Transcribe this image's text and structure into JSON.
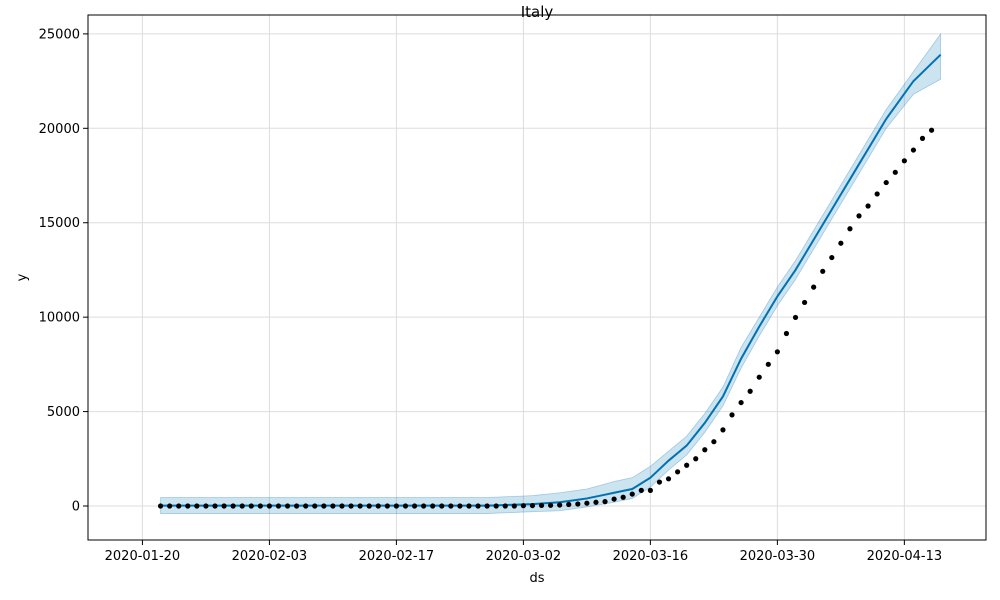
{
  "chart_data": {
    "type": "line",
    "title": "Italy",
    "xlabel": "ds",
    "ylabel": "y",
    "x_ticks": [
      "2020-01-20",
      "2020-02-03",
      "2020-02-17",
      "2020-03-02",
      "2020-03-16",
      "2020-03-30",
      "2020-04-13"
    ],
    "y_ticks": [
      0,
      5000,
      10000,
      15000,
      20000,
      25000
    ],
    "xlim": [
      "2020-01-14",
      "2020-04-22"
    ],
    "ylim": [
      -1800,
      26000
    ],
    "grid": true,
    "colors": {
      "forecast": "#0072B2",
      "band": "#0072B2",
      "points": "#000000"
    },
    "observed": {
      "start": "2020-01-22",
      "values": [
        0,
        0,
        0,
        0,
        0,
        0,
        0,
        0,
        0,
        0,
        0,
        0,
        0,
        0,
        0,
        0,
        0,
        0,
        0,
        0,
        0,
        0,
        0,
        0,
        0,
        0,
        0,
        0,
        0,
        0,
        0,
        0,
        0,
        0,
        0,
        0,
        0,
        0,
        0,
        0,
        17,
        22,
        29,
        38,
        53,
        80,
        107,
        148,
        197,
        233,
        366,
        463,
        631,
        827,
        827,
        1266,
        1441,
        1809,
        2158,
        2503,
        2978,
        3405,
        4032,
        4825,
        5476,
        6077,
        6820,
        7503,
        8165,
        9134,
        9984,
        10779,
        11591,
        12428,
        13155,
        13915,
        14681,
        15362,
        15887,
        16523,
        17127,
        17669,
        18279,
        18849,
        19468,
        19899
      ]
    },
    "forecast": {
      "start": "2020-01-22",
      "knots": [
        [
          "2020-01-22",
          20
        ],
        [
          "2020-02-27",
          20
        ],
        [
          "2020-03-03",
          100
        ],
        [
          "2020-03-06",
          200
        ],
        [
          "2020-03-09",
          400
        ],
        [
          "2020-03-12",
          700
        ],
        [
          "2020-03-14",
          900
        ],
        [
          "2020-03-16",
          1500
        ],
        [
          "2020-03-18",
          2400
        ],
        [
          "2020-03-20",
          3200
        ],
        [
          "2020-03-22",
          4400
        ],
        [
          "2020-03-24",
          5800
        ],
        [
          "2020-03-26",
          7800
        ],
        [
          "2020-03-28",
          9500
        ],
        [
          "2020-03-30",
          11100
        ],
        [
          "2020-04-01",
          12500
        ],
        [
          "2020-04-03",
          14100
        ],
        [
          "2020-04-05",
          15700
        ],
        [
          "2020-04-07",
          17300
        ],
        [
          "2020-04-09",
          18900
        ],
        [
          "2020-04-11",
          20500
        ],
        [
          "2020-04-14",
          22500
        ],
        [
          "2020-04-17",
          23900
        ]
      ],
      "upper": [
        [
          "2020-01-22",
          450
        ],
        [
          "2020-02-27",
          450
        ],
        [
          "2020-03-03",
          550
        ],
        [
          "2020-03-06",
          700
        ],
        [
          "2020-03-09",
          900
        ],
        [
          "2020-03-12",
          1300
        ],
        [
          "2020-03-14",
          1500
        ],
        [
          "2020-03-16",
          2100
        ],
        [
          "2020-03-18",
          2900
        ],
        [
          "2020-03-20",
          3700
        ],
        [
          "2020-03-22",
          4900
        ],
        [
          "2020-03-24",
          6300
        ],
        [
          "2020-03-26",
          8400
        ],
        [
          "2020-03-28",
          10000
        ],
        [
          "2020-03-30",
          11600
        ],
        [
          "2020-04-01",
          13000
        ],
        [
          "2020-04-03",
          14600
        ],
        [
          "2020-04-05",
          16200
        ],
        [
          "2020-04-07",
          17800
        ],
        [
          "2020-04-09",
          19400
        ],
        [
          "2020-04-11",
          21000
        ],
        [
          "2020-04-14",
          23000
        ],
        [
          "2020-04-17",
          25000
        ]
      ],
      "lower": [
        [
          "2020-01-22",
          -400
        ],
        [
          "2020-02-27",
          -400
        ],
        [
          "2020-03-03",
          -300
        ],
        [
          "2020-03-06",
          -250
        ],
        [
          "2020-03-09",
          -50
        ],
        [
          "2020-03-12",
          200
        ],
        [
          "2020-03-14",
          400
        ],
        [
          "2020-03-16",
          1000
        ],
        [
          "2020-03-18",
          1900
        ],
        [
          "2020-03-20",
          2700
        ],
        [
          "2020-03-22",
          3900
        ],
        [
          "2020-03-24",
          5300
        ],
        [
          "2020-03-26",
          7300
        ],
        [
          "2020-03-28",
          9000
        ],
        [
          "2020-03-30",
          10600
        ],
        [
          "2020-04-01",
          12000
        ],
        [
          "2020-04-03",
          13600
        ],
        [
          "2020-04-05",
          15200
        ],
        [
          "2020-04-07",
          16800
        ],
        [
          "2020-04-09",
          18400
        ],
        [
          "2020-04-11",
          20000
        ],
        [
          "2020-04-14",
          21800
        ],
        [
          "2020-04-17",
          22600
        ]
      ]
    }
  }
}
